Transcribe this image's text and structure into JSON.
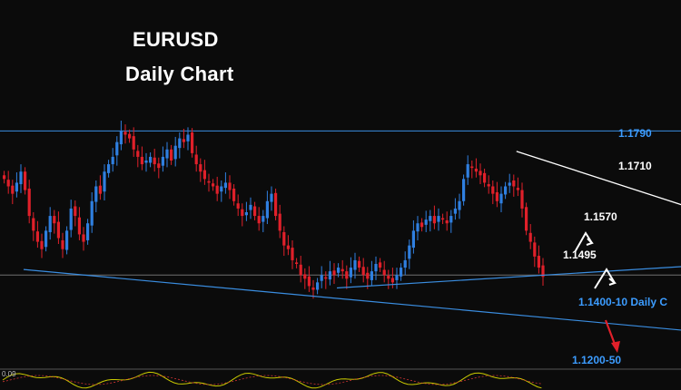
{
  "header": {
    "symbol": "EURUSD",
    "timeframe": "Daily Chart"
  },
  "colors": {
    "background": "#0b0b0b",
    "bull": "#2f7fe0",
    "bear": "#e0202a",
    "level_line": "#3a8de0",
    "support_line": "#3a8de0",
    "resistance_line": "#ffffff",
    "label_blue": "#3c9cff",
    "label_white": "#ffffff",
    "arrow_down": "#e0202a",
    "oscillator": "#c8c800"
  },
  "chart_data": {
    "type": "candlestick",
    "instrument": "EURUSD",
    "timeframe": "Daily",
    "ylim": [
      1.115,
      1.185
    ],
    "levels": [
      {
        "value": 1.179,
        "label": "1.1790",
        "line": true
      },
      {
        "value": 1.171,
        "label": "1.1710",
        "line": false
      },
      {
        "value": 1.157,
        "label": "1.1570",
        "line": false
      },
      {
        "value": 1.1495,
        "label": "1.1495",
        "line": false
      },
      {
        "value": 1.14,
        "label": "1.1400-10 Daily C",
        "line": true
      },
      {
        "value": 1.1225,
        "label": "1.1200-50",
        "line": false
      }
    ],
    "support_trendline": {
      "from_bar": 5,
      "to_bar": 185,
      "from_price": 1.1415,
      "to_price": 1.1225
    },
    "rising_trendline": {
      "from_bar": 80,
      "to_bar": 185,
      "from_price": 1.1365,
      "to_price": 1.144
    },
    "resistance_trendline": {
      "from_bar": 123,
      "to_bar": 185,
      "from_price": 1.1735,
      "to_price": 1.15
    },
    "oscillator_left_label": "0.09",
    "candles_ohlc_close": [
      1.166,
      1.164,
      1.162,
      1.165,
      1.168,
      1.163,
      1.156,
      1.152,
      1.149,
      1.147,
      1.152,
      1.156,
      1.154,
      1.15,
      1.147,
      1.152,
      1.158,
      1.156,
      1.151,
      1.149,
      1.154,
      1.16,
      1.164,
      1.162,
      1.168,
      1.17,
      1.172,
      1.176,
      1.179,
      1.178,
      1.177,
      1.174,
      1.172,
      1.17,
      1.171,
      1.172,
      1.17,
      1.169,
      1.172,
      1.174,
      1.171,
      1.175,
      1.177,
      1.176,
      1.178,
      1.173,
      1.17,
      1.168,
      1.166,
      1.165,
      1.164,
      1.162,
      1.164,
      1.165,
      1.163,
      1.16,
      1.158,
      1.156,
      1.157,
      1.159,
      1.156,
      1.154,
      1.156,
      1.16,
      1.162,
      1.156,
      1.152,
      1.148,
      1.147,
      1.144,
      1.143,
      1.14,
      1.139,
      1.137,
      1.136,
      1.138,
      1.14,
      1.139,
      1.141,
      1.14,
      1.142,
      1.141,
      1.139,
      1.142,
      1.144,
      1.142,
      1.14,
      1.139,
      1.141,
      1.143,
      1.142,
      1.14,
      1.139,
      1.138,
      1.14,
      1.142,
      1.144,
      1.148,
      1.152,
      1.154,
      1.153,
      1.155,
      1.156,
      1.154,
      1.156,
      1.155,
      1.154,
      1.156,
      1.158,
      1.16,
      1.166,
      1.17,
      1.169,
      1.168,
      1.167,
      1.165,
      1.164,
      1.162,
      1.16,
      1.162,
      1.164,
      1.165,
      1.164,
      1.163,
      1.158,
      1.152,
      1.149,
      1.145,
      1.142,
      1.1395
    ]
  }
}
